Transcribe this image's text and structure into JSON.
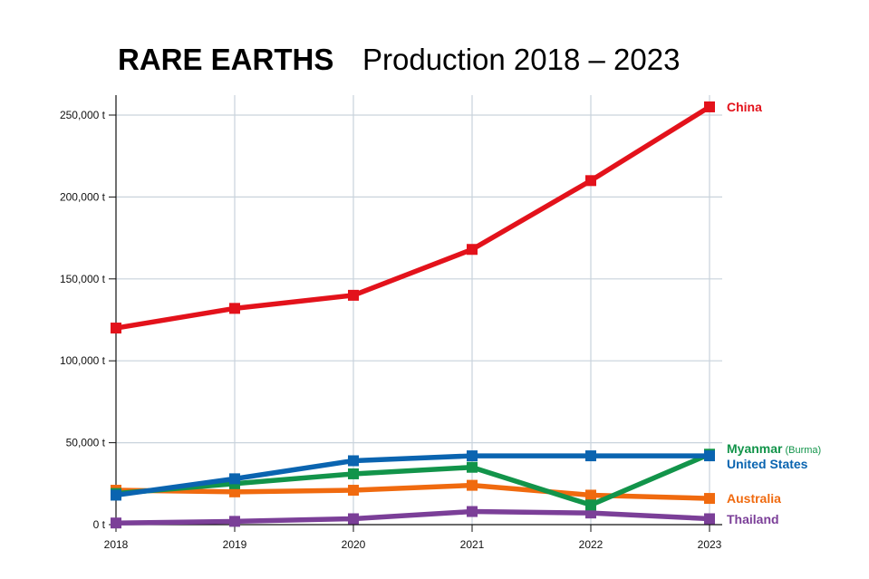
{
  "chart_data": {
    "type": "line",
    "title": "RARE EARTHS",
    "subtitle": "Production 2018 – 2023",
    "xlabel": "",
    "ylabel": "",
    "x": [
      "2018",
      "2019",
      "2020",
      "2021",
      "2022",
      "2023"
    ],
    "ylim": [
      0,
      250000
    ],
    "yticks": [
      0,
      50000,
      100000,
      150000,
      200000,
      250000
    ],
    "ytick_labels": [
      "0 t",
      "50,000 t",
      "100,000 t",
      "150,000 t",
      "200,000 t",
      "250,000 t"
    ],
    "grid": true,
    "legend": "right, inline labels at line ends",
    "series": [
      {
        "name": "China",
        "color": "#e3121b",
        "values": [
          120000,
          132000,
          140000,
          168000,
          210000,
          255000
        ]
      },
      {
        "name": "Myanmar",
        "name_note": "(Burma)",
        "color": "#12944a",
        "values": [
          19000,
          25000,
          31000,
          35000,
          12000,
          43000
        ]
      },
      {
        "name": "United States",
        "color": "#0a64b0",
        "values": [
          18000,
          28000,
          39000,
          42000,
          42000,
          42000
        ]
      },
      {
        "name": "Australia",
        "color": "#f06a0f",
        "values": [
          21000,
          20000,
          21000,
          24000,
          18000,
          16000
        ]
      },
      {
        "name": "Thailand",
        "color": "#7b3f98",
        "values": [
          1000,
          2000,
          3600,
          8000,
          7100,
          3600
        ]
      }
    ]
  }
}
